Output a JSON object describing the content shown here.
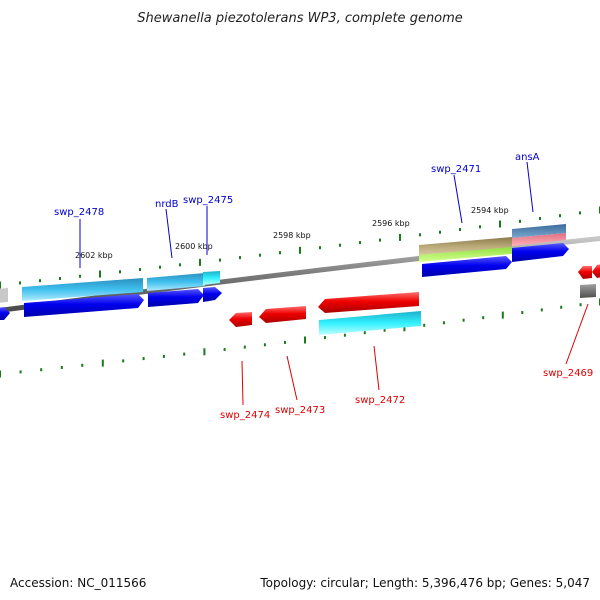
{
  "title": "Shewanella piezotolerans WP3, complete genome",
  "colors": {
    "plus_strand_label": "#0000cc",
    "minus_strand_label": "#dd0000",
    "backbone": "#777777",
    "tick": "#1a7a1a"
  },
  "scale_labels": [
    "2602 kbp",
    "2600 kbp",
    "2598 kbp",
    "2596 kbp",
    "2594 kbp"
  ],
  "gene_labels_plus": [
    "swp_2478",
    "nrdB",
    "swp_2475",
    "swp_2471",
    "ansA"
  ],
  "gene_labels_minus": [
    "swp_2474",
    "swp_2473",
    "swp_2472",
    "swp_2469"
  ],
  "footer": {
    "accession": "Accession: NC_011566",
    "summary": "Topology: circular; Length: 5,396,476 bp; Genes: 5,047"
  }
}
